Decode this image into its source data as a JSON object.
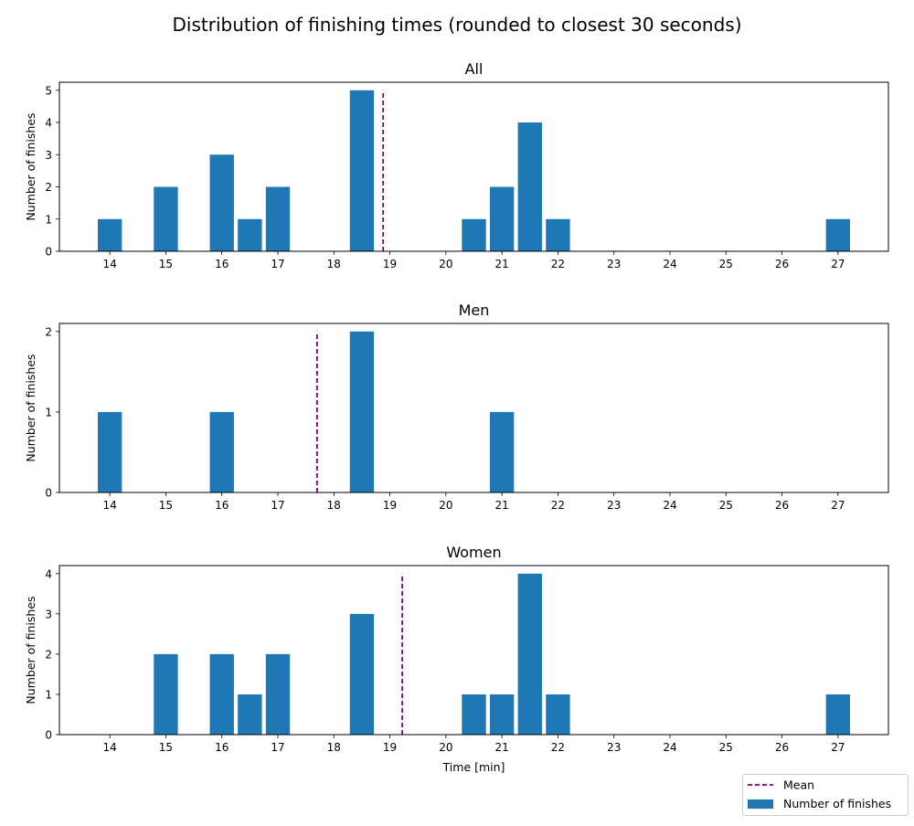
{
  "chart_data": {
    "type": "bar",
    "title": "Distribution of finishing times (rounded to closest 30 seconds)",
    "xlabel": "Time [min]",
    "ylabel": "Number of finishes",
    "xlim": [
      13.1,
      27.9
    ],
    "xticks": [
      14,
      15,
      16,
      17,
      18,
      19,
      20,
      21,
      22,
      23,
      24,
      25,
      26,
      27
    ],
    "bar_width": 0.43,
    "bar_color": "#1f77b4",
    "mean_color": "#800080",
    "grid": false,
    "legend": {
      "placement": "bottom-right outside",
      "entries": [
        {
          "label": "Mean",
          "kind": "line"
        },
        {
          "label": "Number of finishes",
          "kind": "bar"
        }
      ]
    },
    "panels": [
      {
        "title": "All",
        "ylim": [
          0,
          5.25
        ],
        "yticks": [
          0,
          1,
          2,
          3,
          4,
          5
        ],
        "mean": 18.88,
        "x": [
          14,
          15,
          16,
          16.5,
          17,
          18.5,
          20.5,
          21,
          21.5,
          22,
          27
        ],
        "values": [
          1,
          2,
          3,
          1,
          2,
          5,
          1,
          2,
          4,
          1,
          1
        ]
      },
      {
        "title": "Men",
        "ylim": [
          0,
          2.1
        ],
        "yticks": [
          0,
          1,
          2
        ],
        "mean": 17.7,
        "x": [
          14,
          16,
          18.5,
          21
        ],
        "values": [
          1,
          1,
          2,
          1
        ]
      },
      {
        "title": "Women",
        "ylim": [
          0,
          4.2
        ],
        "yticks": [
          0,
          1,
          2,
          3,
          4
        ],
        "mean": 19.22,
        "x": [
          15,
          16,
          16.5,
          17,
          18.5,
          20.5,
          21,
          21.5,
          22,
          27
        ],
        "values": [
          2,
          2,
          1,
          2,
          3,
          1,
          1,
          4,
          1,
          1
        ]
      }
    ]
  }
}
